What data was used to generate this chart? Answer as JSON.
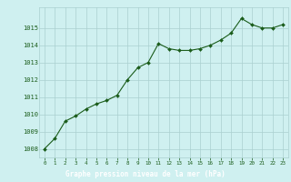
{
  "x": [
    0,
    1,
    2,
    3,
    4,
    5,
    6,
    7,
    8,
    9,
    10,
    11,
    12,
    13,
    14,
    15,
    16,
    17,
    18,
    19,
    20,
    21,
    22,
    23
  ],
  "y": [
    1008.0,
    1008.6,
    1009.6,
    1009.9,
    1010.3,
    1010.6,
    1010.8,
    1011.1,
    1012.0,
    1012.7,
    1013.0,
    1014.1,
    1013.8,
    1013.7,
    1013.7,
    1013.8,
    1014.0,
    1014.3,
    1014.7,
    1015.55,
    1015.2,
    1015.0,
    1015.0,
    1015.2
  ],
  "line_color": "#1a5c1a",
  "marker_color": "#1a5c1a",
  "bg_color": "#cff0f0",
  "grid_color": "#aacfcf",
  "axis_label_color": "#1a5c1a",
  "title": "Graphe pression niveau de la mer (hPa)",
  "title_color": "#ffffff",
  "title_bg": "#2e6b2e",
  "ylim_min": 1007.5,
  "ylim_max": 1016.2,
  "yticks": [
    1008,
    1009,
    1010,
    1011,
    1012,
    1013,
    1014,
    1015
  ],
  "xlim_min": -0.5,
  "xlim_max": 23.5,
  "xticks": [
    0,
    1,
    2,
    3,
    4,
    5,
    6,
    7,
    8,
    9,
    10,
    11,
    12,
    13,
    14,
    15,
    16,
    17,
    18,
    19,
    20,
    21,
    22,
    23
  ]
}
